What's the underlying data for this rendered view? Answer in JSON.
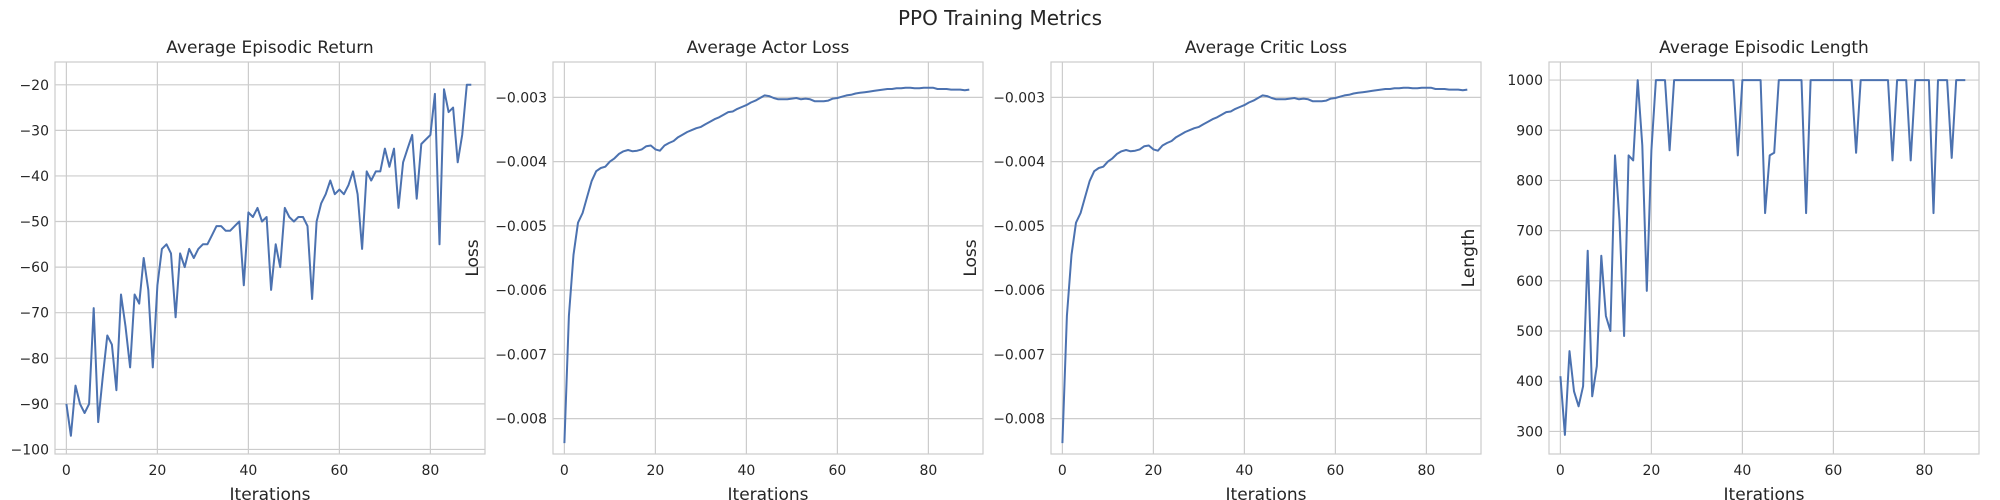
{
  "figure": {
    "title": "PPO Training Metrics"
  },
  "chart_data": [
    {
      "type": "line",
      "title": "Average Episodic Return",
      "xlabel": "Iterations",
      "ylabel": "",
      "xlim": [
        -2.5,
        92
      ],
      "ylim": [
        -101,
        -15
      ],
      "xticks": [
        0,
        20,
        40,
        60,
        80
      ],
      "yticks": [
        -100,
        -90,
        -80,
        -70,
        -60,
        -50,
        -40,
        -30,
        -20
      ],
      "ytick_labels": [
        "−100",
        "−90",
        "−80",
        "−70",
        "−60",
        "−50",
        "−40",
        "−30",
        "−20"
      ],
      "grid": true,
      "x": [
        0,
        1,
        2,
        3,
        4,
        5,
        6,
        7,
        8,
        9,
        10,
        11,
        12,
        13,
        14,
        15,
        16,
        17,
        18,
        19,
        20,
        21,
        22,
        23,
        24,
        25,
        26,
        27,
        28,
        29,
        30,
        31,
        32,
        33,
        34,
        35,
        36,
        37,
        38,
        39,
        40,
        41,
        42,
        43,
        44,
        45,
        46,
        47,
        48,
        49,
        50,
        51,
        52,
        53,
        54,
        55,
        56,
        57,
        58,
        59,
        60,
        61,
        62,
        63,
        64,
        65,
        66,
        67,
        68,
        69,
        70,
        71,
        72,
        73,
        74,
        75,
        76,
        77,
        78,
        79,
        80,
        81,
        82,
        83,
        84,
        85,
        86,
        87,
        88,
        89
      ],
      "series": [
        {
          "values": [
            -90,
            -97,
            -86,
            -90,
            -92,
            -90,
            -69,
            -94,
            -84,
            -75,
            -77,
            -87,
            -66,
            -73,
            -82,
            -66,
            -68,
            -58,
            -65,
            -82,
            -64,
            -56,
            -55,
            -57,
            -71,
            -57,
            -60,
            -56,
            -58,
            -56,
            -55,
            -55,
            -53,
            -51,
            -51,
            -52,
            -52,
            -51,
            -50,
            -64,
            -48,
            -49,
            -47,
            -50,
            -49,
            -65,
            -55,
            -60,
            -47,
            -49,
            -50,
            -49,
            -49,
            -51,
            -67,
            -50,
            -46,
            -44,
            -41,
            -44,
            -43,
            -44,
            -42,
            -39,
            -44,
            -56,
            -39,
            -41,
            -39,
            -39,
            -34,
            -38,
            -34,
            -47,
            -37,
            -34,
            -31,
            -45,
            -33,
            -32,
            -31,
            -22,
            -55,
            -21,
            -26,
            -25,
            -37,
            -31,
            -20,
            -20
          ]
        }
      ]
    },
    {
      "type": "line",
      "title": "Average Actor Loss",
      "xlabel": "Iterations",
      "ylabel": "Loss",
      "xlim": [
        -2.5,
        92
      ],
      "ylim": [
        -0.00855,
        -0.00245
      ],
      "xticks": [
        0,
        20,
        40,
        60,
        80
      ],
      "yticks": [
        -0.008,
        -0.007,
        -0.006,
        -0.005,
        -0.004,
        -0.003
      ],
      "ytick_labels": [
        "−0.008",
        "−0.007",
        "−0.006",
        "−0.005",
        "−0.004",
        "−0.003"
      ],
      "grid": true,
      "x": [
        0,
        1,
        2,
        3,
        4,
        5,
        6,
        7,
        8,
        9,
        10,
        11,
        12,
        13,
        14,
        15,
        16,
        17,
        18,
        19,
        20,
        21,
        22,
        23,
        24,
        25,
        26,
        27,
        28,
        29,
        30,
        31,
        32,
        33,
        34,
        35,
        36,
        37,
        38,
        39,
        40,
        41,
        42,
        43,
        44,
        45,
        46,
        47,
        48,
        49,
        50,
        51,
        52,
        53,
        54,
        55,
        56,
        57,
        58,
        59,
        60,
        61,
        62,
        63,
        64,
        65,
        66,
        67,
        68,
        69,
        70,
        71,
        72,
        73,
        74,
        75,
        76,
        77,
        78,
        79,
        80,
        81,
        82,
        83,
        84,
        85,
        86,
        87,
        88,
        89
      ],
      "series": [
        {
          "values": [
            -0.00838,
            -0.0064,
            -0.00545,
            -0.00495,
            -0.0048,
            -0.00455,
            -0.0043,
            -0.00415,
            -0.0041,
            -0.00408,
            -0.004,
            -0.00395,
            -0.00388,
            -0.00384,
            -0.00382,
            -0.00384,
            -0.00383,
            -0.00381,
            -0.00376,
            -0.00375,
            -0.00381,
            -0.00383,
            -0.00375,
            -0.00371,
            -0.00368,
            -0.00362,
            -0.00358,
            -0.00354,
            -0.00351,
            -0.00348,
            -0.00346,
            -0.00342,
            -0.00338,
            -0.00334,
            -0.00331,
            -0.00327,
            -0.00323,
            -0.00322,
            -0.00318,
            -0.00315,
            -0.00312,
            -0.00308,
            -0.00305,
            -0.00301,
            -0.00297,
            -0.00298,
            -0.00301,
            -0.00303,
            -0.00303,
            -0.00303,
            -0.00302,
            -0.00301,
            -0.00303,
            -0.00302,
            -0.00303,
            -0.00306,
            -0.00306,
            -0.00306,
            -0.00305,
            -0.00302,
            -0.00301,
            -0.00299,
            -0.00297,
            -0.00296,
            -0.00294,
            -0.00293,
            -0.00292,
            -0.00291,
            -0.0029,
            -0.00289,
            -0.00288,
            -0.00287,
            -0.00287,
            -0.00286,
            -0.00286,
            -0.00285,
            -0.00285,
            -0.00286,
            -0.00286,
            -0.00285,
            -0.00285,
            -0.00285,
            -0.00287,
            -0.00287,
            -0.00287,
            -0.00288,
            -0.00288,
            -0.00288,
            -0.00289,
            -0.00288
          ]
        }
      ]
    },
    {
      "type": "line",
      "title": "Average Critic Loss",
      "xlabel": "Iterations",
      "ylabel": "Loss",
      "xlim": [
        -2.5,
        92
      ],
      "ylim": [
        -0.00855,
        -0.00245
      ],
      "xticks": [
        0,
        20,
        40,
        60,
        80
      ],
      "yticks": [
        -0.008,
        -0.007,
        -0.006,
        -0.005,
        -0.004,
        -0.003
      ],
      "ytick_labels": [
        "−0.008",
        "−0.007",
        "−0.006",
        "−0.005",
        "−0.004",
        "−0.003"
      ],
      "grid": true,
      "x": [
        0,
        1,
        2,
        3,
        4,
        5,
        6,
        7,
        8,
        9,
        10,
        11,
        12,
        13,
        14,
        15,
        16,
        17,
        18,
        19,
        20,
        21,
        22,
        23,
        24,
        25,
        26,
        27,
        28,
        29,
        30,
        31,
        32,
        33,
        34,
        35,
        36,
        37,
        38,
        39,
        40,
        41,
        42,
        43,
        44,
        45,
        46,
        47,
        48,
        49,
        50,
        51,
        52,
        53,
        54,
        55,
        56,
        57,
        58,
        59,
        60,
        61,
        62,
        63,
        64,
        65,
        66,
        67,
        68,
        69,
        70,
        71,
        72,
        73,
        74,
        75,
        76,
        77,
        78,
        79,
        80,
        81,
        82,
        83,
        84,
        85,
        86,
        87,
        88,
        89
      ],
      "series": [
        {
          "values": [
            -0.00838,
            -0.0064,
            -0.00545,
            -0.00495,
            -0.0048,
            -0.00455,
            -0.0043,
            -0.00415,
            -0.0041,
            -0.00408,
            -0.004,
            -0.00395,
            -0.00388,
            -0.00384,
            -0.00382,
            -0.00384,
            -0.00383,
            -0.00381,
            -0.00376,
            -0.00375,
            -0.00381,
            -0.00383,
            -0.00375,
            -0.00371,
            -0.00368,
            -0.00362,
            -0.00358,
            -0.00354,
            -0.00351,
            -0.00348,
            -0.00346,
            -0.00342,
            -0.00338,
            -0.00334,
            -0.00331,
            -0.00327,
            -0.00323,
            -0.00322,
            -0.00318,
            -0.00315,
            -0.00312,
            -0.00308,
            -0.00305,
            -0.00301,
            -0.00297,
            -0.00298,
            -0.00301,
            -0.00303,
            -0.00303,
            -0.00303,
            -0.00302,
            -0.00301,
            -0.00303,
            -0.00302,
            -0.00303,
            -0.00306,
            -0.00306,
            -0.00306,
            -0.00305,
            -0.00302,
            -0.00301,
            -0.00299,
            -0.00297,
            -0.00296,
            -0.00294,
            -0.00293,
            -0.00292,
            -0.00291,
            -0.0029,
            -0.00289,
            -0.00288,
            -0.00287,
            -0.00287,
            -0.00286,
            -0.00286,
            -0.00285,
            -0.00285,
            -0.00286,
            -0.00286,
            -0.00285,
            -0.00285,
            -0.00285,
            -0.00287,
            -0.00287,
            -0.00287,
            -0.00288,
            -0.00288,
            -0.00288,
            -0.00289,
            -0.00288
          ]
        }
      ]
    },
    {
      "type": "line",
      "title": "Average Episodic Length",
      "xlabel": "Iterations",
      "ylabel": "Length",
      "xlim": [
        -2.5,
        92
      ],
      "ylim": [
        255,
        1036
      ],
      "xticks": [
        0,
        20,
        40,
        60,
        80
      ],
      "yticks": [
        300,
        400,
        500,
        600,
        700,
        800,
        900,
        1000
      ],
      "ytick_labels": [
        "300",
        "400",
        "500",
        "600",
        "700",
        "800",
        "900",
        "1000"
      ],
      "grid": true,
      "x": [
        0,
        1,
        2,
        3,
        4,
        5,
        6,
        7,
        8,
        9,
        10,
        11,
        12,
        13,
        14,
        15,
        16,
        17,
        18,
        19,
        20,
        21,
        22,
        23,
        24,
        25,
        26,
        27,
        28,
        29,
        30,
        31,
        32,
        33,
        34,
        35,
        36,
        37,
        38,
        39,
        40,
        41,
        42,
        43,
        44,
        45,
        46,
        47,
        48,
        49,
        50,
        51,
        52,
        53,
        54,
        55,
        56,
        57,
        58,
        59,
        60,
        61,
        62,
        63,
        64,
        65,
        66,
        67,
        68,
        69,
        70,
        71,
        72,
        73,
        74,
        75,
        76,
        77,
        78,
        79,
        80,
        81,
        82,
        83,
        84,
        85,
        86,
        87,
        88,
        89
      ],
      "series": [
        {
          "values": [
            410,
            293,
            460,
            380,
            350,
            390,
            660,
            370,
            430,
            650,
            530,
            500,
            850,
            720,
            490,
            850,
            840,
            1000,
            870,
            580,
            860,
            1000,
            1000,
            1000,
            860,
            1000,
            1000,
            1000,
            1000,
            1000,
            1000,
            1000,
            1000,
            1000,
            1000,
            1000,
            1000,
            1000,
            1000,
            850,
            1000,
            1000,
            1000,
            1000,
            1000,
            735,
            850,
            855,
            1000,
            1000,
            1000,
            1000,
            1000,
            1000,
            735,
            1000,
            1000,
            1000,
            1000,
            1000,
            1000,
            1000,
            1000,
            1000,
            1000,
            855,
            1000,
            1000,
            1000,
            1000,
            1000,
            1000,
            1000,
            840,
            1000,
            1000,
            1000,
            840,
            1000,
            1000,
            1000,
            1000,
            735,
            1000,
            1000,
            1000,
            845,
            1000,
            1000,
            1000
          ]
        }
      ]
    }
  ]
}
